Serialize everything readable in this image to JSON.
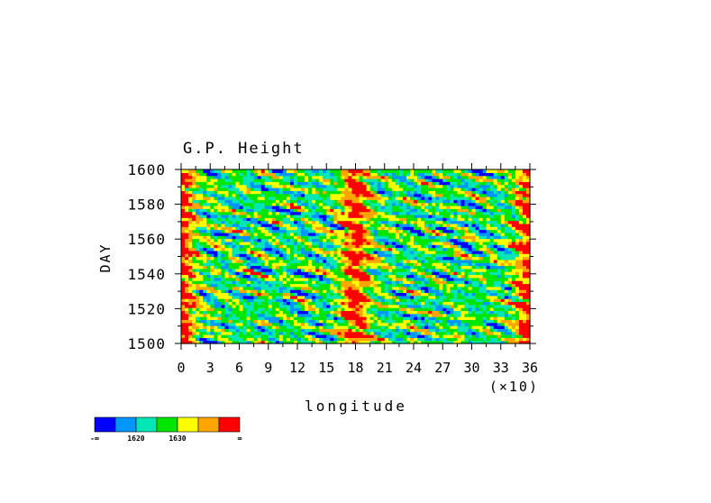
{
  "chart_data": {
    "type": "heatmap",
    "title": "G.P. Height",
    "xlabel": "longitude",
    "ylabel": "DAY",
    "x_multiplier_label": "(×10)",
    "xlim": [
      0,
      36
    ],
    "ylim": [
      1500,
      1600
    ],
    "x_ticks": [
      "0",
      "3",
      "6",
      "9",
      "12",
      "15",
      "18",
      "21",
      "24",
      "27",
      "30",
      "33",
      "36"
    ],
    "y_ticks": [
      "1500",
      "1520",
      "1540",
      "1560",
      "1580",
      "1600"
    ],
    "colorbar": {
      "colors": [
        "#0000ff",
        "#0096ff",
        "#00e6b4",
        "#00e600",
        "#ffff00",
        "#ffa500",
        "#ff0000"
      ],
      "labels": [
        "-∞",
        "1620",
        "1630",
        "∞"
      ]
    },
    "features": [
      {
        "longitude_x10": 18,
        "level": "high"
      },
      {
        "longitude_x10": 0,
        "level": "high"
      },
      {
        "longitude_x10": 36,
        "level": "high"
      }
    ]
  }
}
